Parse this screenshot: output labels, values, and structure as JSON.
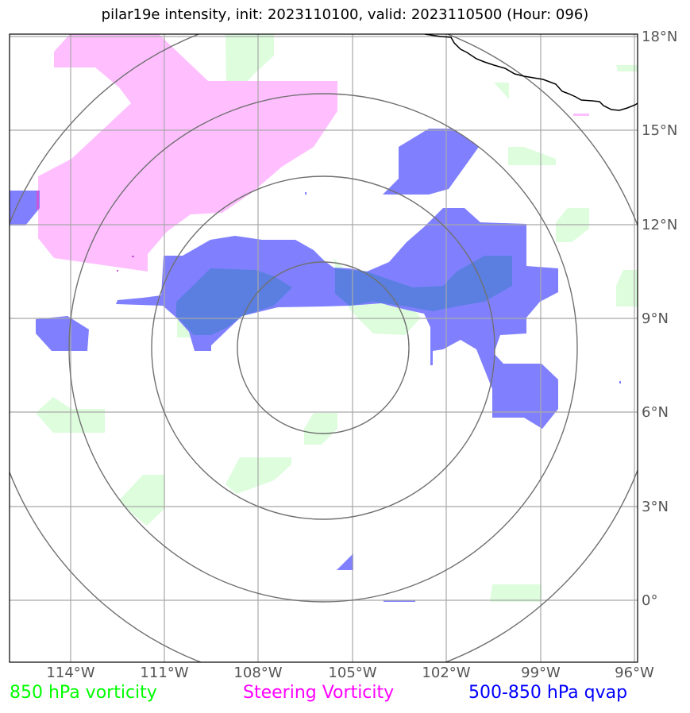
{
  "title": "pilar19e intensity, init: 2023110100, valid: 2023110500 (Hour: 096)",
  "axes": {
    "x_ticks": [
      "114°W",
      "111°W",
      "108°W",
      "105°W",
      "102°W",
      "99°W",
      "96°W"
    ],
    "y_ticks": [
      "18°N",
      "15°N",
      "12°N",
      "9°N",
      "6°N",
      "3°N",
      "0°"
    ]
  },
  "legend": {
    "vorticity": {
      "label": "850 hPa vorticity",
      "color": "#00ff00"
    },
    "steering": {
      "label": "Steering Vorticity",
      "color": "#ff00ff"
    },
    "qvap": {
      "label": "500-850 hPa qvap",
      "color": "#0000ff"
    }
  },
  "colors": {
    "vorticity_fill": "#ddfddd",
    "steering_fill": "#ffbfff",
    "qvap_fill": "#8080ff",
    "overlap_fill": "#5a7fe0",
    "grid": "#a8a8a8",
    "range_rings": "#707070",
    "coastline": "#000000"
  },
  "range_rings_count": 4
}
